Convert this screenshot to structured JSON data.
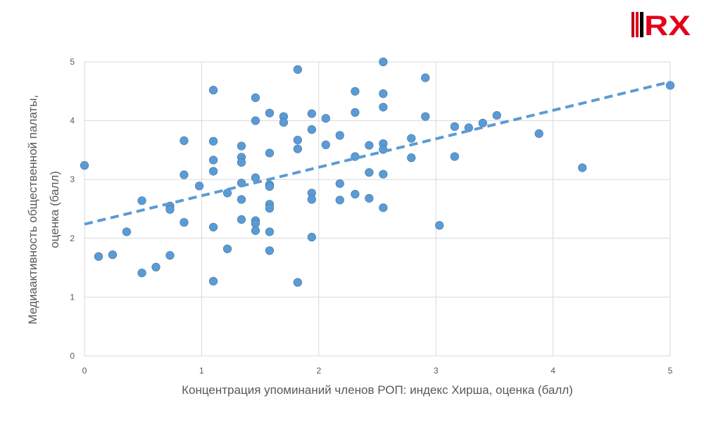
{
  "chart_data": {
    "type": "scatter",
    "xlabel": "Концентрация упоминаний членов РОП: индекс Хирша, оценка (балл)",
    "ylabel_lines": [
      "Медиаактивность общественной палаты,",
      "оценка (балл)"
    ],
    "xlim": [
      0,
      5
    ],
    "ylim": [
      0,
      5
    ],
    "xticks": [
      "0",
      "1",
      "2",
      "3",
      "4",
      "5"
    ],
    "yticks": [
      "0",
      "1",
      "2",
      "3",
      "4",
      "5"
    ],
    "grid": true,
    "legend": "none",
    "point_color": "#5b9bd5",
    "trendline": {
      "style": "dashed",
      "color": "#5b9bd5",
      "x": [
        0,
        5
      ],
      "y": [
        2.24,
        4.66
      ]
    },
    "points": [
      [
        0.0,
        3.24
      ],
      [
        0.12,
        1.69
      ],
      [
        0.24,
        1.72
      ],
      [
        0.36,
        2.11
      ],
      [
        0.49,
        2.64
      ],
      [
        0.49,
        1.41
      ],
      [
        0.61,
        1.51
      ],
      [
        0.73,
        2.55
      ],
      [
        0.73,
        2.49
      ],
      [
        0.73,
        1.71
      ],
      [
        0.85,
        3.66
      ],
      [
        0.85,
        3.08
      ],
      [
        0.85,
        2.27
      ],
      [
        0.98,
        2.89
      ],
      [
        1.1,
        4.52
      ],
      [
        1.1,
        3.65
      ],
      [
        1.1,
        3.33
      ],
      [
        1.1,
        3.14
      ],
      [
        1.1,
        2.19
      ],
      [
        1.1,
        1.27
      ],
      [
        1.22,
        2.77
      ],
      [
        1.22,
        1.82
      ],
      [
        1.34,
        3.57
      ],
      [
        1.34,
        3.38
      ],
      [
        1.34,
        3.29
      ],
      [
        1.34,
        2.94
      ],
      [
        1.34,
        2.66
      ],
      [
        1.34,
        2.32
      ],
      [
        1.46,
        4.39
      ],
      [
        1.46,
        4.0
      ],
      [
        1.46,
        3.03
      ],
      [
        1.46,
        2.3
      ],
      [
        1.46,
        2.25
      ],
      [
        1.46,
        2.13
      ],
      [
        1.58,
        4.13
      ],
      [
        1.58,
        3.45
      ],
      [
        1.58,
        2.91
      ],
      [
        1.58,
        2.88
      ],
      [
        1.58,
        2.58
      ],
      [
        1.58,
        2.51
      ],
      [
        1.58,
        2.11
      ],
      [
        1.58,
        1.79
      ],
      [
        1.7,
        4.07
      ],
      [
        1.7,
        3.97
      ],
      [
        1.82,
        4.87
      ],
      [
        1.82,
        3.67
      ],
      [
        1.82,
        3.52
      ],
      [
        1.82,
        1.25
      ],
      [
        1.94,
        4.12
      ],
      [
        1.94,
        3.85
      ],
      [
        1.94,
        2.77
      ],
      [
        1.94,
        2.66
      ],
      [
        1.94,
        2.02
      ],
      [
        2.06,
        4.04
      ],
      [
        2.06,
        3.59
      ],
      [
        2.18,
        3.75
      ],
      [
        2.18,
        2.93
      ],
      [
        2.18,
        2.65
      ],
      [
        2.31,
        4.5
      ],
      [
        2.31,
        4.14
      ],
      [
        2.31,
        3.39
      ],
      [
        2.31,
        2.75
      ],
      [
        2.43,
        3.58
      ],
      [
        2.43,
        3.12
      ],
      [
        2.43,
        2.68
      ],
      [
        2.55,
        5.0
      ],
      [
        2.55,
        4.46
      ],
      [
        2.55,
        4.23
      ],
      [
        2.55,
        3.61
      ],
      [
        2.55,
        3.51
      ],
      [
        2.55,
        3.09
      ],
      [
        2.55,
        2.52
      ],
      [
        2.79,
        3.7
      ],
      [
        2.79,
        3.37
      ],
      [
        2.91,
        4.73
      ],
      [
        2.91,
        4.07
      ],
      [
        3.03,
        2.22
      ],
      [
        3.16,
        3.9
      ],
      [
        3.16,
        3.39
      ],
      [
        3.28,
        3.88
      ],
      [
        3.4,
        3.96
      ],
      [
        3.52,
        4.09
      ],
      [
        3.88,
        3.78
      ],
      [
        4.25,
        3.2
      ],
      [
        5.0,
        4.6
      ]
    ]
  },
  "logo": {
    "text": "RX",
    "colors": [
      "#b3001b",
      "#e3001b",
      "#000000"
    ]
  }
}
